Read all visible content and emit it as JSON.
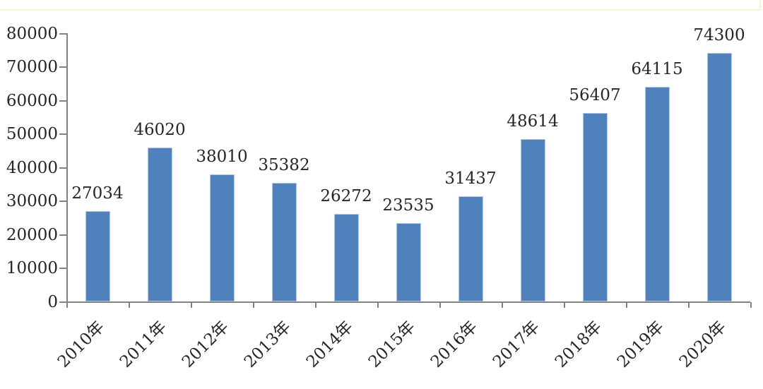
{
  "page": {
    "background": "#ffffff",
    "top_border_color": "#faf5cd"
  },
  "chart_data": {
    "type": "bar",
    "title": "",
    "xlabel": "",
    "ylabel": "",
    "categories": [
      "2010年",
      "2011年",
      "2012年",
      "2013年",
      "2014年",
      "2015年",
      "2016年",
      "2017年",
      "2018年",
      "2019年",
      "2020年"
    ],
    "values": [
      27034,
      46020,
      38010,
      35382,
      26272,
      23535,
      31437,
      48614,
      56407,
      64115,
      74300
    ],
    "data_labels": [
      "27034",
      "46020",
      "38010",
      "35382",
      "26272",
      "23535",
      "31437",
      "48614",
      "56407",
      "64115",
      "74300"
    ],
    "y_ticks": [
      0,
      10000,
      20000,
      30000,
      40000,
      50000,
      60000,
      70000,
      80000
    ],
    "y_tick_labels": [
      "0",
      "10000",
      "20000",
      "30000",
      "40000",
      "50000",
      "60000",
      "70000",
      "80000"
    ],
    "ylim": [
      0,
      80000
    ],
    "grid": "off",
    "legend": "none",
    "x_tick_mark_placement": "between-categories",
    "bar_color": "#4f81bd",
    "bar_border_color": "#b7c9e0",
    "axis_color": "#828282",
    "text_color": "#262626"
  }
}
